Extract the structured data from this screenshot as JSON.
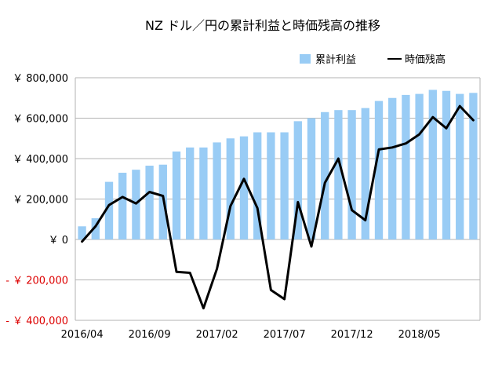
{
  "chart_data": {
    "type": "bar+line",
    "title": "NZ ドル／円の累計利益と時価残高の推移",
    "categories": [
      "2016/04",
      "2016/05",
      "2016/06",
      "2016/07",
      "2016/08",
      "2016/09",
      "2016/10",
      "2016/11",
      "2016/12",
      "2017/01",
      "2017/02",
      "2017/03",
      "2017/04",
      "2017/05",
      "2017/06",
      "2017/07",
      "2017/08",
      "2017/09",
      "2017/10",
      "2017/11",
      "2017/12",
      "2018/01",
      "2018/02",
      "2018/03",
      "2018/04",
      "2018/05",
      "2018/06",
      "2018/07",
      "2018/08",
      "2018/09"
    ],
    "x_tick_labels": [
      "2016/04",
      "2016/09",
      "2017/02",
      "2017/07",
      "2017/12",
      "2018/05"
    ],
    "series": [
      {
        "name": "累計利益",
        "kind": "bar",
        "color": "#99ccf5",
        "values": [
          65000,
          105000,
          285000,
          330000,
          345000,
          365000,
          370000,
          435000,
          455000,
          455000,
          480000,
          500000,
          510000,
          530000,
          530000,
          530000,
          585000,
          600000,
          630000,
          640000,
          640000,
          650000,
          685000,
          700000,
          715000,
          720000,
          740000,
          735000,
          720000,
          725000
        ]
      },
      {
        "name": "時価残高",
        "kind": "line",
        "color": "#000000",
        "values": [
          -10000,
          65000,
          170000,
          210000,
          178000,
          235000,
          215000,
          -160000,
          -165000,
          -340000,
          -145000,
          165000,
          300000,
          155000,
          -250000,
          -295000,
          185000,
          -35000,
          280000,
          400000,
          145000,
          95000,
          445000,
          455000,
          475000,
          520000,
          605000,
          550000,
          660000,
          590000
        ]
      }
    ],
    "ylim": [
      -400000,
      800000
    ],
    "y_ticks": [
      {
        "value": 800000,
        "label": "￥ 800,000",
        "color": "#000000"
      },
      {
        "value": 600000,
        "label": "￥ 600,000",
        "color": "#000000"
      },
      {
        "value": 400000,
        "label": "￥ 400,000",
        "color": "#000000"
      },
      {
        "value": 200000,
        "label": "￥ 200,000",
        "color": "#000000"
      },
      {
        "value": 0,
        "label": "￥ 0",
        "color": "#000000"
      },
      {
        "value": -200000,
        "label": "- ￥ 200,000",
        "color": "#dd0000"
      },
      {
        "value": -400000,
        "label": "- ￥ 400,000",
        "color": "#dd0000"
      }
    ],
    "xlabel": "",
    "ylabel": "",
    "grid": true,
    "legend_position": "top-right"
  }
}
